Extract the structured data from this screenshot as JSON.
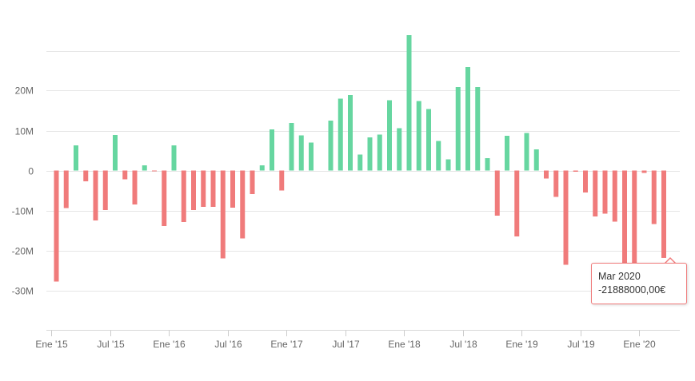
{
  "chart_data": {
    "type": "bar",
    "title": "",
    "xlabel": "",
    "ylabel": "",
    "ylim": [
      -40000000,
      40000000
    ],
    "y_ticks": [
      {
        "value": 20000000,
        "label": "20M"
      },
      {
        "value": 10000000,
        "label": "10M"
      },
      {
        "value": 0,
        "label": "0"
      },
      {
        "value": -10000000,
        "label": "-10M"
      },
      {
        "value": -20000000,
        "label": "-20M"
      },
      {
        "value": -30000000,
        "label": "-30M"
      }
    ],
    "x_ticks": [
      {
        "index": 0,
        "label": "Ene '15"
      },
      {
        "index": 6,
        "label": "Jul '15"
      },
      {
        "index": 12,
        "label": "Ene '16"
      },
      {
        "index": 18,
        "label": "Jul '16"
      },
      {
        "index": 24,
        "label": "Ene '17"
      },
      {
        "index": 30,
        "label": "Jul '17"
      },
      {
        "index": 36,
        "label": "Ene '18"
      },
      {
        "index": 42,
        "label": "Jul '18"
      },
      {
        "index": 48,
        "label": "Ene '19"
      },
      {
        "index": 54,
        "label": "Jul '19"
      },
      {
        "index": 60,
        "label": "Ene '20"
      }
    ],
    "grid": true,
    "positive_color": "#66d6a0",
    "negative_color": "#f07b7b",
    "values": [
      -27800000,
      -9400000,
      6300000,
      -2700000,
      -12500000,
      -9900000,
      8900000,
      -2200000,
      -8500000,
      1300000,
      -200000,
      -13900000,
      6300000,
      -12900000,
      -9900000,
      -9100000,
      -9100000,
      -22000000,
      -9300000,
      -17000000,
      -5900000,
      1300000,
      10300000,
      -5000000,
      11900000,
      8800000,
      7000000,
      0,
      12500000,
      18000000,
      18900000,
      4000000,
      8300000,
      9000000,
      17600000,
      10600000,
      33900000,
      17400000,
      15400000,
      7400000,
      2800000,
      20900000,
      25900000,
      20900000,
      3100000,
      -11300000,
      8700000,
      -16500000,
      9400000,
      5300000,
      -2000000,
      -6600000,
      -23600000,
      -300000,
      -5500000,
      -11500000,
      -10800000,
      -12800000,
      -23300000,
      -24500000,
      -600000,
      -13400000,
      -21888000
    ],
    "tooltip": {
      "title": "Mar 2020",
      "value": "-21888000,00€"
    }
  }
}
